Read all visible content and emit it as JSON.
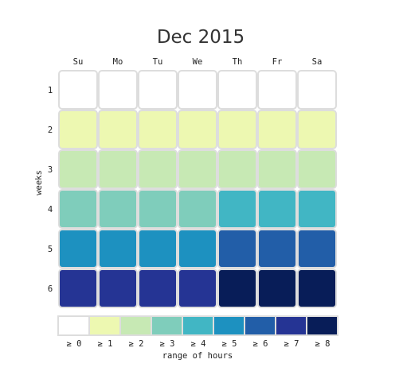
{
  "chart_data": {
    "type": "heatmap",
    "title": "Dec 2015",
    "x_categories": [
      "Su",
      "Mo",
      "Tu",
      "We",
      "Th",
      "Fr",
      "Sa"
    ],
    "y_categories": [
      "1",
      "2",
      "3",
      "4",
      "5",
      "6"
    ],
    "ylabel": "weeks",
    "legend_title": "range of hours",
    "legend_labels": [
      "≥ 0",
      "≥ 1",
      "≥ 2",
      "≥ 3",
      "≥ 4",
      "≥ 5",
      "≥ 6",
      "≥ 7",
      "≥ 8"
    ],
    "colors": [
      "#ffffff",
      "#edf8b1",
      "#c7e9b4",
      "#7fcdbb",
      "#41b6c4",
      "#1d91c0",
      "#225ea8",
      "#253494",
      "#081d58"
    ],
    "values": [
      [
        0,
        0,
        0,
        0,
        0,
        0,
        0
      ],
      [
        1,
        1,
        1,
        1,
        1,
        1,
        1
      ],
      [
        2,
        2,
        2,
        2,
        2,
        2,
        2
      ],
      [
        3,
        3,
        3,
        3,
        4,
        4,
        4
      ],
      [
        5,
        5,
        5,
        5,
        6,
        6,
        6
      ],
      [
        7,
        7,
        7,
        7,
        8,
        8,
        8
      ]
    ]
  }
}
